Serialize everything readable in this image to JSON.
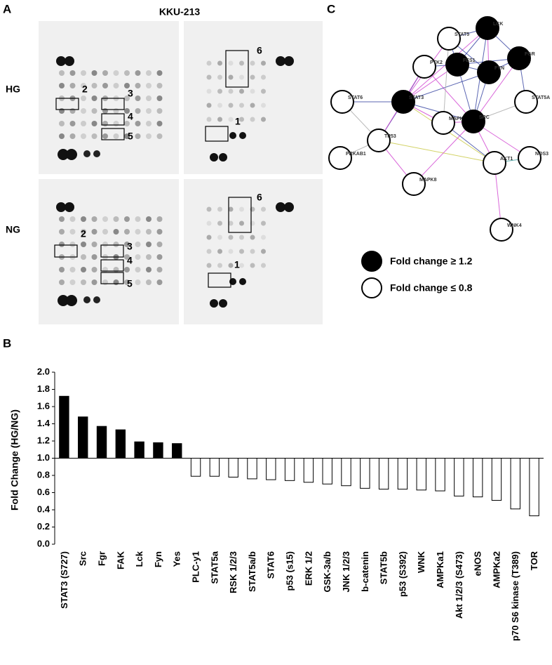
{
  "panel_a": {
    "label": "A",
    "title": "KKU-213",
    "rows": [
      "HG",
      "NG"
    ],
    "box_labels": [
      "1",
      "2",
      "3",
      "4",
      "5",
      "6"
    ]
  },
  "panel_b": {
    "label": "B"
  },
  "panel_c": {
    "label": "C",
    "nodes": [
      {
        "label": "LCK",
        "filled": true
      },
      {
        "label": "STAT5",
        "filled": false
      },
      {
        "label": "PTK2",
        "filled": false
      },
      {
        "label": "FES1",
        "filled": true
      },
      {
        "label": "FGR",
        "filled": true
      },
      {
        "label": "FYN",
        "filled": true
      },
      {
        "label": "STAT6",
        "filled": false
      },
      {
        "label": "STAT3",
        "filled": true
      },
      {
        "label": "MAPK",
        "filled": false
      },
      {
        "label": "SRC",
        "filled": true
      },
      {
        "label": "STAT5A",
        "filled": false
      },
      {
        "label": "TP53",
        "filled": false
      },
      {
        "label": "PRKAB1",
        "filled": false
      },
      {
        "label": "AKT1",
        "filled": false
      },
      {
        "label": "NOS3",
        "filled": false
      },
      {
        "label": "MAPK8",
        "filled": false
      },
      {
        "label": "WNK4",
        "filled": false
      }
    ],
    "legend": [
      "Fold change ≥ 1.2",
      "Fold change ≤ 0.8"
    ]
  },
  "chart_data": {
    "type": "bar",
    "y_label": "Fold Change (HG/NG)",
    "categories": [
      "STAT3 (S727)",
      "Src",
      "Fgr",
      "FAK",
      "Lck",
      "Fyn",
      "Yes",
      "PLC-y1",
      "STAT5a",
      "RSK 1/2/3",
      "STAT5a/b",
      "STAT6",
      "p53 (s15)",
      "ERK 1/2",
      "GSK-3a/b",
      "JNK 1/2/3",
      "b-catenin",
      "STAT5b",
      "p53 (S392)",
      "WNK",
      "AMPKa1",
      "Akt 1/2/3 (S473)",
      "eNOS",
      "AMPKa2",
      "p70 S6 kinase (T389)",
      "TOR"
    ],
    "values": [
      1.72,
      1.48,
      1.37,
      1.33,
      1.19,
      1.18,
      1.17,
      0.79,
      0.79,
      0.78,
      0.76,
      0.75,
      0.74,
      0.72,
      0.7,
      0.68,
      0.65,
      0.64,
      0.64,
      0.63,
      0.62,
      0.56,
      0.55,
      0.51,
      0.41,
      0.33
    ],
    "colors": [
      "#000000",
      "#000000",
      "#000000",
      "#000000",
      "#000000",
      "#000000",
      "#000000",
      "#ffffff",
      "#ffffff",
      "#ffffff",
      "#ffffff",
      "#ffffff",
      "#ffffff",
      "#ffffff",
      "#ffffff",
      "#ffffff",
      "#ffffff",
      "#ffffff",
      "#ffffff",
      "#ffffff",
      "#ffffff",
      "#ffffff",
      "#ffffff",
      "#ffffff",
      "#ffffff",
      "#ffffff"
    ],
    "baseline": 1,
    "ylim": [
      0,
      2
    ],
    "yticks": [
      {
        "value": 0,
        "label": "0.0"
      },
      0.2,
      0.4,
      0.6,
      0.8,
      {
        "value": 1,
        "label": "1.0"
      },
      1.2,
      1.4,
      1.6,
      1.8,
      {
        "value": 2,
        "label": "2.0"
      }
    ]
  }
}
